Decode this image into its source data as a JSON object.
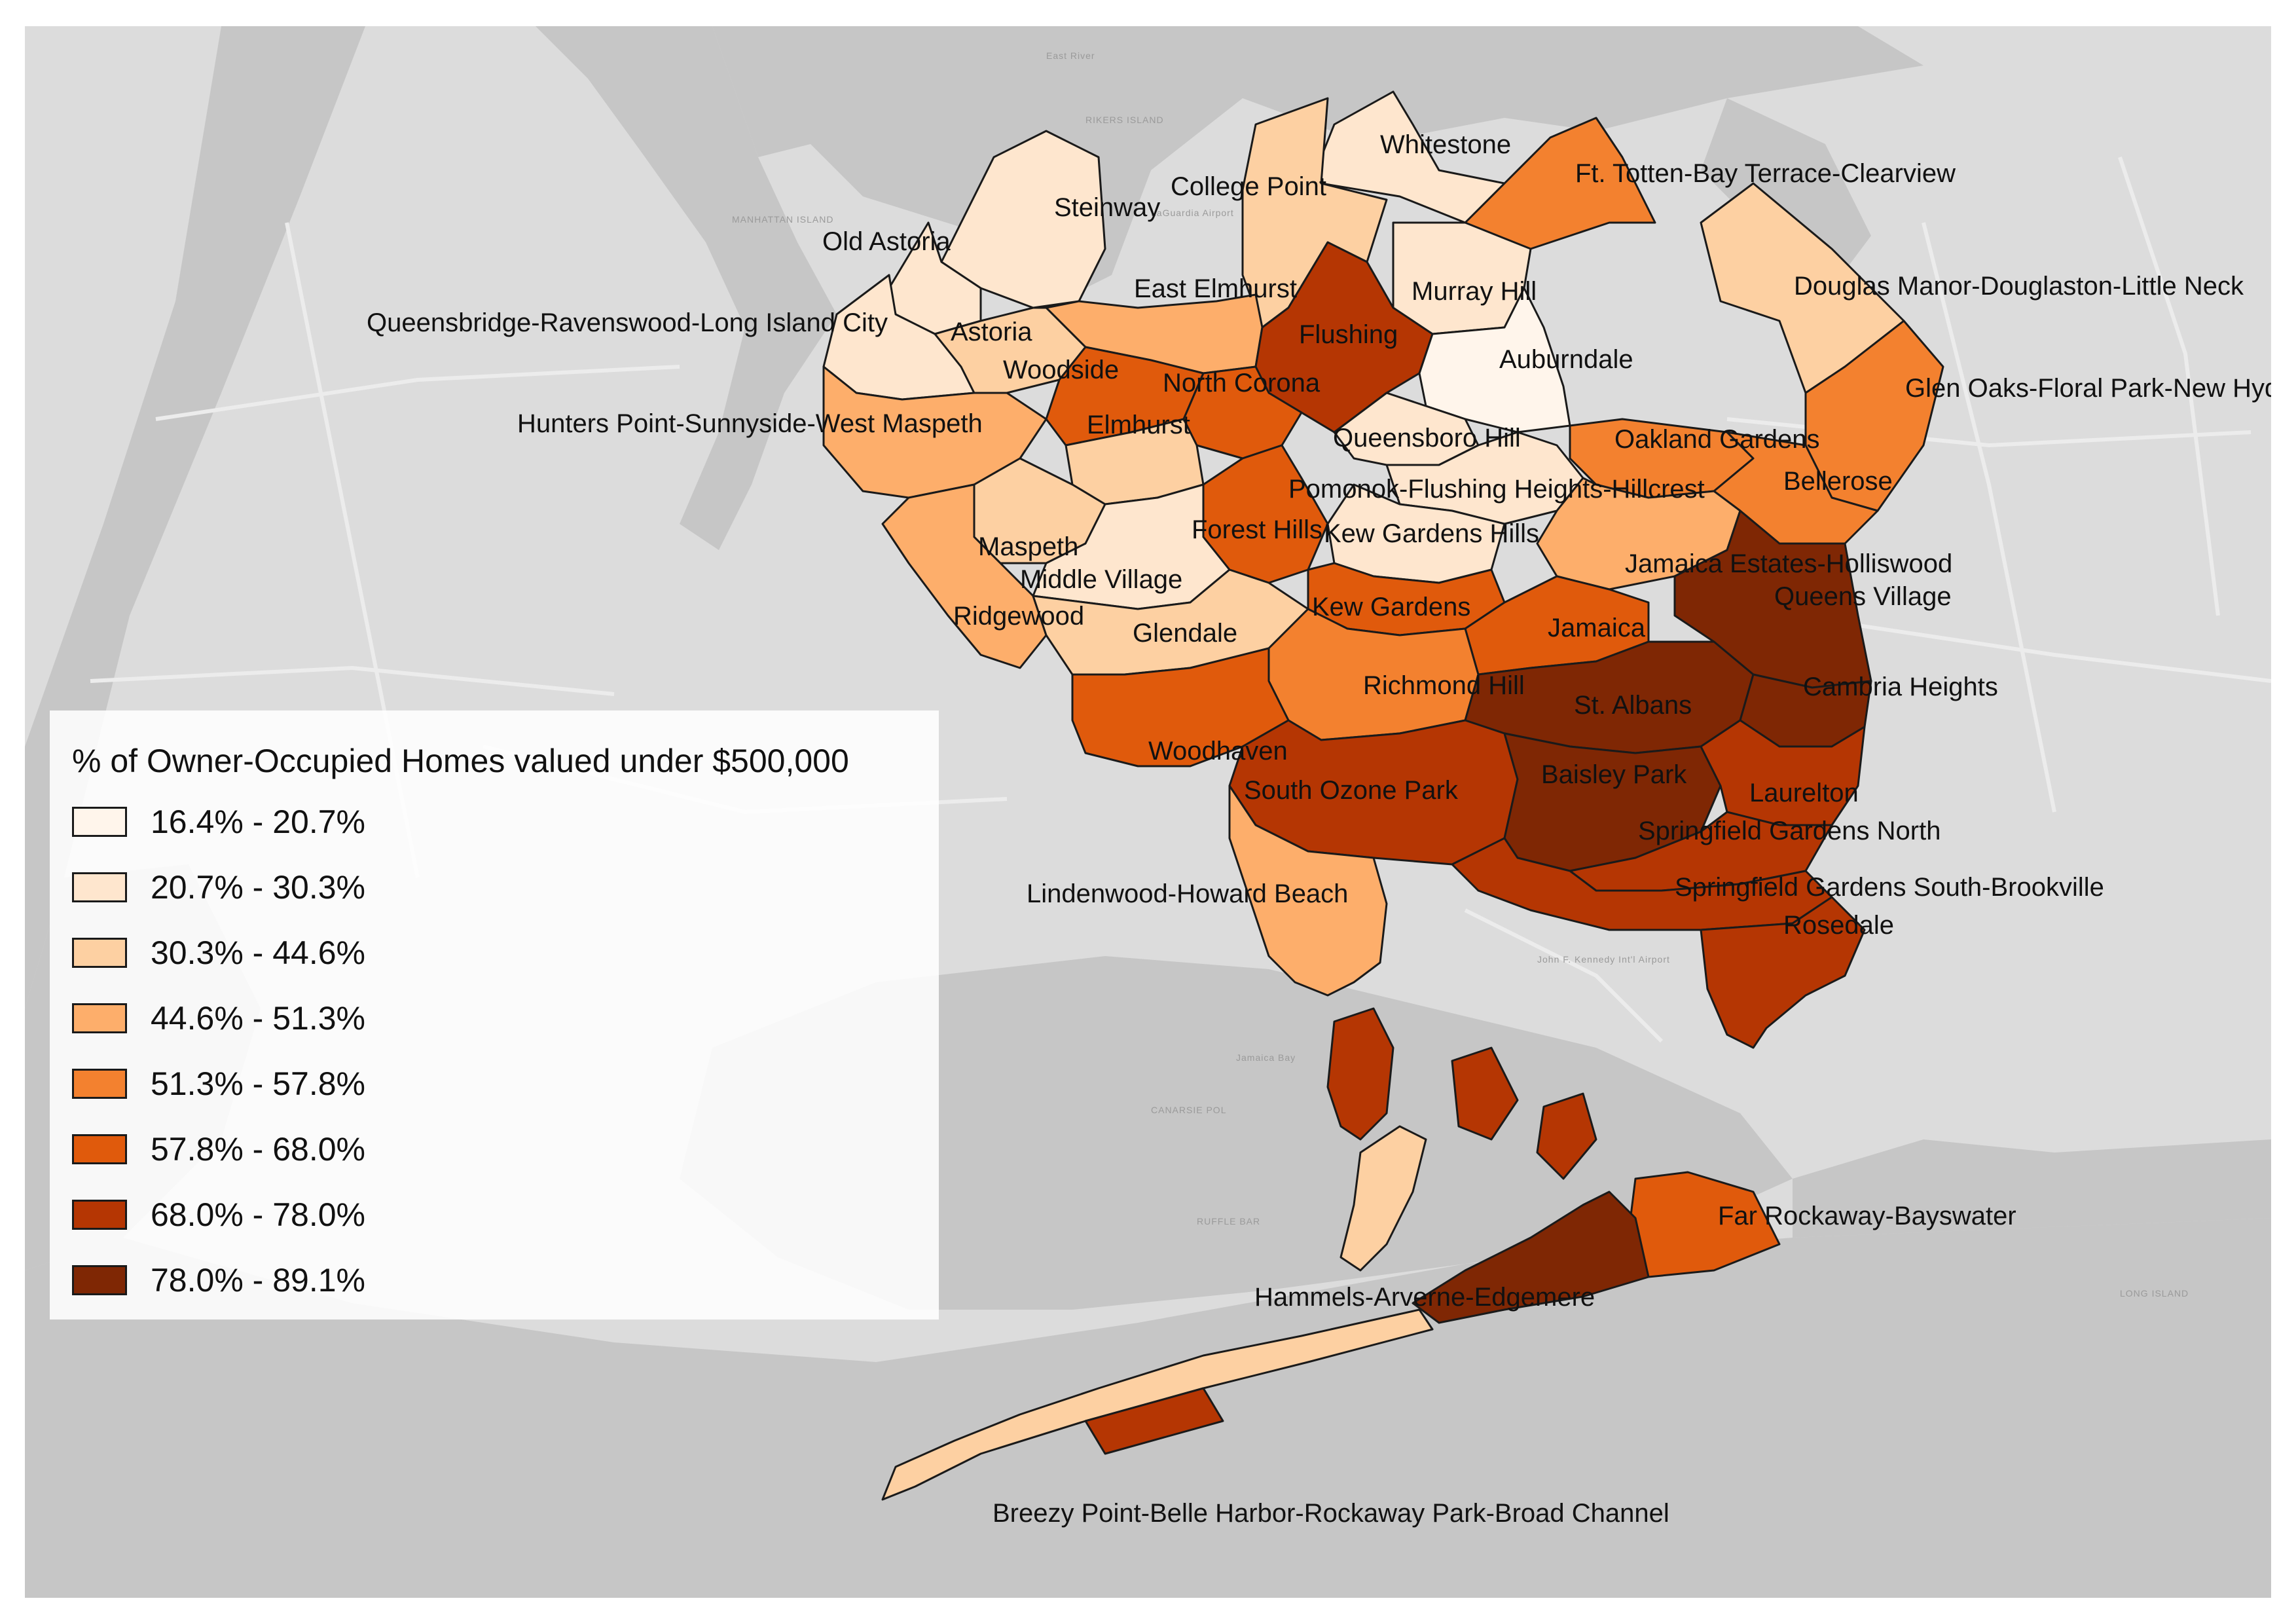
{
  "legend": {
    "title": "% of Owner-Occupied Homes valued under $500,000",
    "classes": [
      {
        "label": "16.4% - 20.7%",
        "color": "#fff5eb"
      },
      {
        "label": "20.7% - 30.3%",
        "color": "#fee6ce"
      },
      {
        "label": "30.3% - 44.6%",
        "color": "#fdd0a2"
      },
      {
        "label": "44.6% - 51.3%",
        "color": "#fdae6b"
      },
      {
        "label": "51.3% - 57.8%",
        "color": "#f3812f"
      },
      {
        "label": "57.8% - 68.0%",
        "color": "#e05a0c"
      },
      {
        "label": "68.0% - 78.0%",
        "color": "#b53603"
      },
      {
        "label": "78.0% - 89.1%",
        "color": "#7f2704"
      }
    ]
  },
  "basemap": {
    "water_color": "#c6c6c6",
    "land_color": "#dcdcdc",
    "labels": [
      "East River",
      "RIKERS ISLAND",
      "MANHATTAN ISLAND",
      "LaGuardia Airport",
      "Jamaica Bay",
      "CANARSIE POL",
      "RUFFLE BAR",
      "John F. Kennedy Int'l Airport",
      "LONG ISLAND"
    ]
  },
  "neighborhoods": [
    {
      "name": "Whitestone",
      "class": 1
    },
    {
      "name": "College Point",
      "class": 2
    },
    {
      "name": "Steinway",
      "class": 1
    },
    {
      "name": "Old Astoria",
      "class": 1
    },
    {
      "name": "Ft. Totten-Bay Terrace-Clearview",
      "class": 4
    },
    {
      "name": "East Elmhurst",
      "class": 3
    },
    {
      "name": "Murray Hill",
      "class": 1
    },
    {
      "name": "Douglas Manor-Douglaston-Little Neck",
      "class": 2
    },
    {
      "name": "Queensbridge-Ravenswood-Long Island City",
      "class": 1
    },
    {
      "name": "Astoria",
      "class": 2
    },
    {
      "name": "Flushing",
      "class": 6
    },
    {
      "name": "Auburndale",
      "class": 0
    },
    {
      "name": "Woodside",
      "class": 5
    },
    {
      "name": "North Corona",
      "class": 5
    },
    {
      "name": "Glen Oaks-Floral Park-New Hyde",
      "class": 4
    },
    {
      "name": "Hunters Point-Sunnyside-West Maspeth",
      "class": 3
    },
    {
      "name": "Elmhurst",
      "class": 2
    },
    {
      "name": "Queensboro Hill",
      "class": 1
    },
    {
      "name": "Oakland Gardens",
      "class": 4
    },
    {
      "name": "Pomonok-Flushing Heights-Hillcrest",
      "class": 1
    },
    {
      "name": "Bellerose",
      "class": 4
    },
    {
      "name": "Forest Hills",
      "class": 5
    },
    {
      "name": "Kew Gardens Hills",
      "class": 1
    },
    {
      "name": "Maspeth",
      "class": 2
    },
    {
      "name": "Middle Village",
      "class": 1
    },
    {
      "name": "Jamaica Estates-Holliswood",
      "class": 3
    },
    {
      "name": "Queens Village",
      "class": 7
    },
    {
      "name": "Ridgewood",
      "class": 3
    },
    {
      "name": "Kew Gardens",
      "class": 5
    },
    {
      "name": "Glendale",
      "class": 2
    },
    {
      "name": "Jamaica",
      "class": 5
    },
    {
      "name": "Richmond Hill",
      "class": 4
    },
    {
      "name": "St. Albans",
      "class": 7
    },
    {
      "name": "Cambria Heights",
      "class": 7
    },
    {
      "name": "Woodhaven",
      "class": 5
    },
    {
      "name": "South Ozone Park",
      "class": 6
    },
    {
      "name": "Baisley Park",
      "class": 7
    },
    {
      "name": "Laurelton",
      "class": 6
    },
    {
      "name": "Springfield Gardens North",
      "class": 6
    },
    {
      "name": "Lindenwood-Howard Beach",
      "class": 3
    },
    {
      "name": "Springfield Gardens South-Brookville",
      "class": 6
    },
    {
      "name": "Rosedale",
      "class": 6
    },
    {
      "name": "Far Rockaway-Bayswater",
      "class": 5
    },
    {
      "name": "Hammels-Arverne-Edgemere",
      "class": 7
    },
    {
      "name": "Breezy Point-Belle Harbor-Rockaway Park-Broad Channel",
      "class": 2
    }
  ]
}
